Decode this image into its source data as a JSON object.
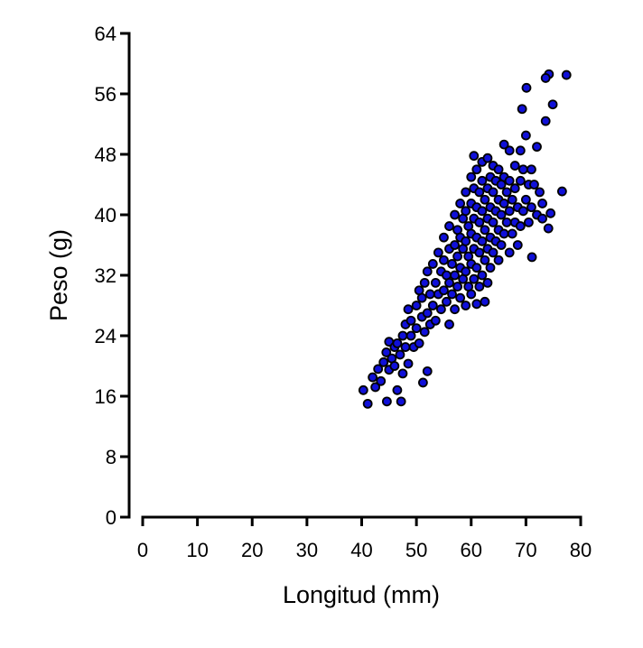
{
  "chart_data": {
    "type": "scatter",
    "xlabel": "Longitud (mm)",
    "ylabel": "Peso (g)",
    "xlim": [
      0,
      80
    ],
    "xticks": [
      0,
      10,
      20,
      30,
      40,
      50,
      60,
      70,
      80
    ],
    "ylim": [
      0,
      64
    ],
    "yticks": [
      0,
      8,
      16,
      24,
      32,
      40,
      48,
      56,
      64
    ],
    "color": "#1010d8",
    "edgecolor": "#000000",
    "x": [
      77.4,
      74.2,
      73.6,
      70.1,
      74.9,
      73.6,
      69.3,
      76.6,
      71.1,
      74.1,
      74.5,
      41.1,
      44.6,
      47.2,
      40.3,
      51.2,
      52,
      46.5,
      47.5,
      42,
      42.5,
      43,
      43.5,
      44,
      44.5,
      45,
      45,
      45.5,
      46,
      46,
      46.5,
      47,
      47.5,
      48,
      48,
      48.5,
      48.5,
      49,
      49,
      49.5,
      50,
      50,
      50.5,
      50.5,
      51,
      51,
      51.5,
      51.5,
      52,
      52,
      52.5,
      52.5,
      53,
      53,
      53.5,
      53.5,
      54,
      54,
      54.5,
      54.5,
      55,
      55,
      55,
      55.5,
      55.5,
      56,
      56,
      56,
      56,
      56.5,
      56.5,
      57,
      57,
      57,
      57,
      57.5,
      57.5,
      57.5,
      58,
      58,
      58,
      58,
      58.5,
      58.5,
      58.5,
      59,
      59,
      59,
      59,
      59,
      59.5,
      59.5,
      59.5,
      60,
      60,
      60,
      60,
      60,
      60.5,
      60.5,
      60.5,
      60.5,
      60.5,
      61,
      61,
      61,
      61,
      61,
      61.5,
      61.5,
      61.5,
      61.5,
      62,
      62,
      62,
      62,
      62,
      62.5,
      62.5,
      62.5,
      62.5,
      63,
      63,
      63,
      63,
      63,
      63.5,
      63.5,
      63.5,
      63.5,
      64,
      64,
      64,
      64,
      64.5,
      64.5,
      64.5,
      65,
      65,
      65,
      65,
      65.5,
      65.5,
      65.5,
      66,
      66,
      66,
      66,
      66.5,
      66.5,
      67,
      67,
      67,
      67,
      67.5,
      67.5,
      68,
      68,
      68,
      68.5,
      68.5,
      69,
      69,
      69,
      69.5,
      69.5,
      70,
      70,
      70.5,
      70.5,
      71,
      71,
      71.5,
      72,
      72,
      72.5,
      73,
      73
    ],
    "values": [
      58.5,
      58.6,
      58.1,
      56.8,
      54.6,
      52.4,
      54,
      43.1,
      34.4,
      38.2,
      40.2,
      15,
      15.3,
      15.3,
      16.8,
      17.8,
      19.3,
      16.8,
      19,
      18.5,
      17.2,
      19.6,
      18,
      20.5,
      21.8,
      19.5,
      23.2,
      21,
      22.5,
      20,
      23,
      21.5,
      24,
      22.5,
      25.5,
      20.3,
      27.5,
      24,
      26,
      22.5,
      25,
      28,
      23,
      30,
      26.5,
      29,
      24.5,
      31,
      27,
      32.5,
      25.5,
      29.5,
      28,
      33.5,
      26,
      31,
      29.5,
      35,
      27.5,
      32.5,
      30,
      34,
      37,
      28.5,
      32,
      25.5,
      31,
      35.5,
      38.5,
      29.5,
      33.5,
      27.5,
      32,
      36,
      40,
      30.5,
      34.5,
      38,
      29,
      33,
      37,
      41.5,
      31.5,
      35.5,
      39.5,
      28,
      32.5,
      36.5,
      40.5,
      43,
      30.5,
      34.5,
      38.5,
      29.5,
      33.5,
      37.5,
      41.5,
      45,
      31.5,
      35.5,
      39.5,
      43.5,
      47.8,
      28.2,
      33,
      37,
      41,
      46,
      30.5,
      35,
      39,
      43,
      32,
      36.5,
      40.5,
      44.5,
      47,
      28.5,
      34,
      38,
      42,
      31,
      35.5,
      39.5,
      43.5,
      47.5,
      33,
      37,
      41,
      45,
      35,
      39,
      43,
      46.5,
      36.5,
      40.5,
      44.5,
      34,
      38,
      42,
      46,
      36,
      40,
      44,
      37.5,
      41.5,
      45,
      49.3,
      39,
      43,
      35,
      40.5,
      44.5,
      48.5,
      37.5,
      42,
      39,
      43.5,
      46.5,
      36,
      41,
      38.5,
      44.5,
      48.5,
      40.5,
      46,
      42,
      50.5,
      39,
      44,
      46,
      41,
      44,
      40,
      49,
      43,
      39.5,
      41.5
    ]
  }
}
